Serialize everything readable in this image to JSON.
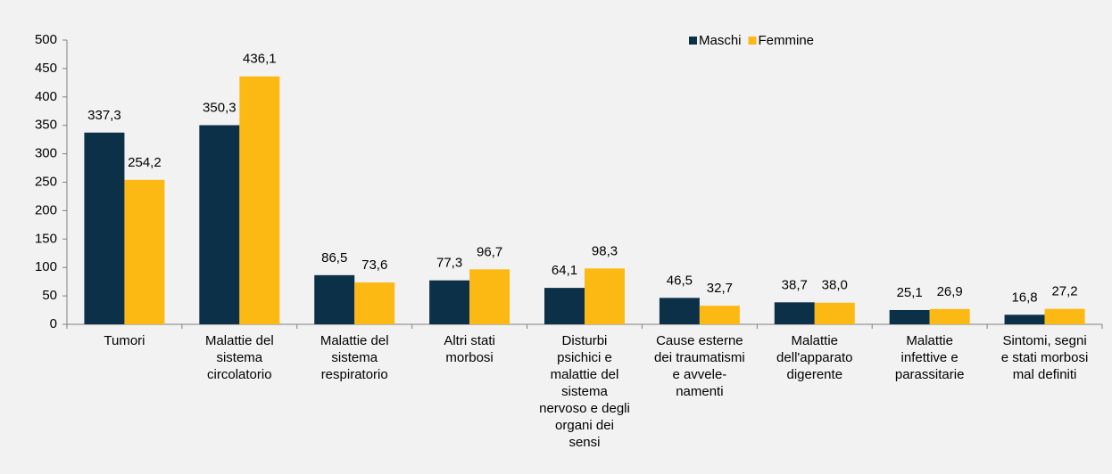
{
  "chart_data": {
    "type": "bar",
    "categories": [
      "Tumori",
      "Malattie del\nsistema\ncircolatorio",
      "Malattie del\nsistema\nrespiratorio",
      "Altri stati\nmorbosi",
      "Disturbi\npsichici e\nmalattie del\nsistema\nnervoso e degli\norgani dei\nsensi",
      "Cause esterne\ndei traumatismi\ne avvele-\nnamenti",
      "Malattie\ndell'apparato\ndigerente",
      "Malattie\ninfettive e\nparassitarie",
      "Sintomi, segni\ne stati morbosi\nmal definiti"
    ],
    "series": [
      {
        "name": "Maschi",
        "color": "#0d3049",
        "values": [
          337.3,
          350.3,
          86.5,
          77.3,
          64.1,
          46.5,
          38.7,
          25.1,
          16.8
        ],
        "value_labels": [
          "337,3",
          "350,3",
          "86,5",
          "77,3",
          "64,1",
          "46,5",
          "38,7",
          "25,1",
          "16,8"
        ]
      },
      {
        "name": "Femmine",
        "color": "#fdb913",
        "values": [
          254.2,
          436.1,
          73.6,
          96.7,
          98.3,
          32.7,
          38.0,
          26.9,
          27.2
        ],
        "value_labels": [
          "254,2",
          "436,1",
          "73,6",
          "96,7",
          "98,3",
          "32,7",
          "38,0",
          "26,9",
          "27,2"
        ]
      }
    ],
    "ylim": [
      0,
      500
    ],
    "yticks": [
      0,
      50,
      100,
      150,
      200,
      250,
      300,
      350,
      400,
      450,
      500
    ],
    "grid": false,
    "legend": "top-right"
  }
}
